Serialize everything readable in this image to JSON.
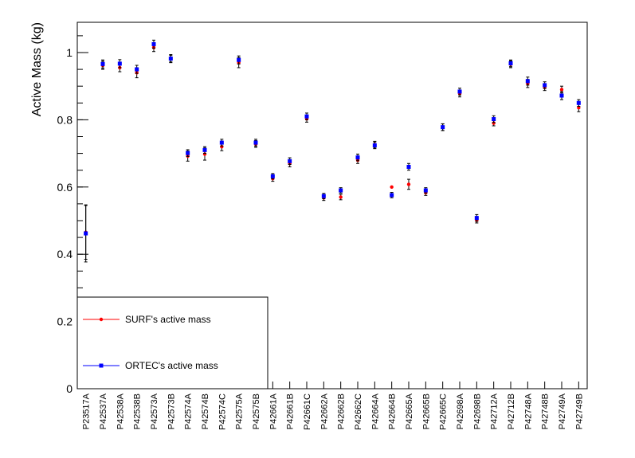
{
  "chart_data": {
    "type": "scatter",
    "title": "",
    "xlabel": "",
    "ylabel": "Active Mass (kg)",
    "ylim": [
      0,
      1.09
    ],
    "y_ticks": [
      "0",
      "0.2",
      "0.4",
      "0.6",
      "0.8",
      "1"
    ],
    "grid": false,
    "legend_position": "bottom-left",
    "categories": [
      "P23517A",
      "P42537A",
      "P42538A",
      "P42538B",
      "P42573A",
      "P42573B",
      "P42574A",
      "P42574B",
      "P42574C",
      "P42575A",
      "P42575B",
      "P42661A",
      "P42661B",
      "P42661C",
      "P42662A",
      "P42662B",
      "P42662C",
      "P42664A",
      "P42664B",
      "P42665A",
      "P42665B",
      "P42665C",
      "P42698A",
      "P42698B",
      "P42712A",
      "P42712B",
      "P42748A",
      "P42748B",
      "P42749A",
      "P42749B"
    ],
    "series": [
      {
        "name": "SURF's active mass",
        "color": "#ff0000",
        "values": [
          0.465,
          0.962,
          0.955,
          0.94,
          1.015,
          0.982,
          0.692,
          0.698,
          0.72,
          0.97,
          0.728,
          0.625,
          0.67,
          0.803,
          0.568,
          0.57,
          0.68,
          0.726,
          0.6,
          0.608,
          0.583,
          0.778,
          0.878,
          0.501,
          0.79,
          0.965,
          0.908,
          0.897,
          0.89,
          0.836
        ],
        "errors": [
          0.08,
          0.012,
          0.012,
          0.015,
          0.012,
          0.01,
          0.015,
          0.018,
          0.012,
          0.015,
          0.01,
          0.008,
          0.01,
          0.01,
          0.008,
          0.008,
          0.01,
          0.01,
          0.0,
          0.015,
          0.008,
          0.01,
          0.01,
          0.008,
          0.008,
          0.01,
          0.012,
          0.01,
          0.01,
          0.012
        ]
      },
      {
        "name": "ORTEC's active mass",
        "color": "#0000ff",
        "values": [
          0.462,
          0.966,
          0.967,
          0.95,
          1.025,
          0.982,
          0.701,
          0.71,
          0.732,
          0.978,
          0.732,
          0.632,
          0.677,
          0.81,
          0.573,
          0.59,
          0.688,
          0.724,
          0.576,
          0.66,
          0.59,
          0.778,
          0.884,
          0.508,
          0.802,
          0.968,
          0.915,
          0.903,
          0.872,
          0.85
        ],
        "errors": [
          0.085,
          0.012,
          0.012,
          0.012,
          0.012,
          0.012,
          0.01,
          0.01,
          0.01,
          0.012,
          0.01,
          0.008,
          0.01,
          0.01,
          0.008,
          0.008,
          0.01,
          0.01,
          0.008,
          0.01,
          0.008,
          0.01,
          0.01,
          0.01,
          0.01,
          0.01,
          0.012,
          0.01,
          0.012,
          0.01
        ]
      }
    ]
  }
}
